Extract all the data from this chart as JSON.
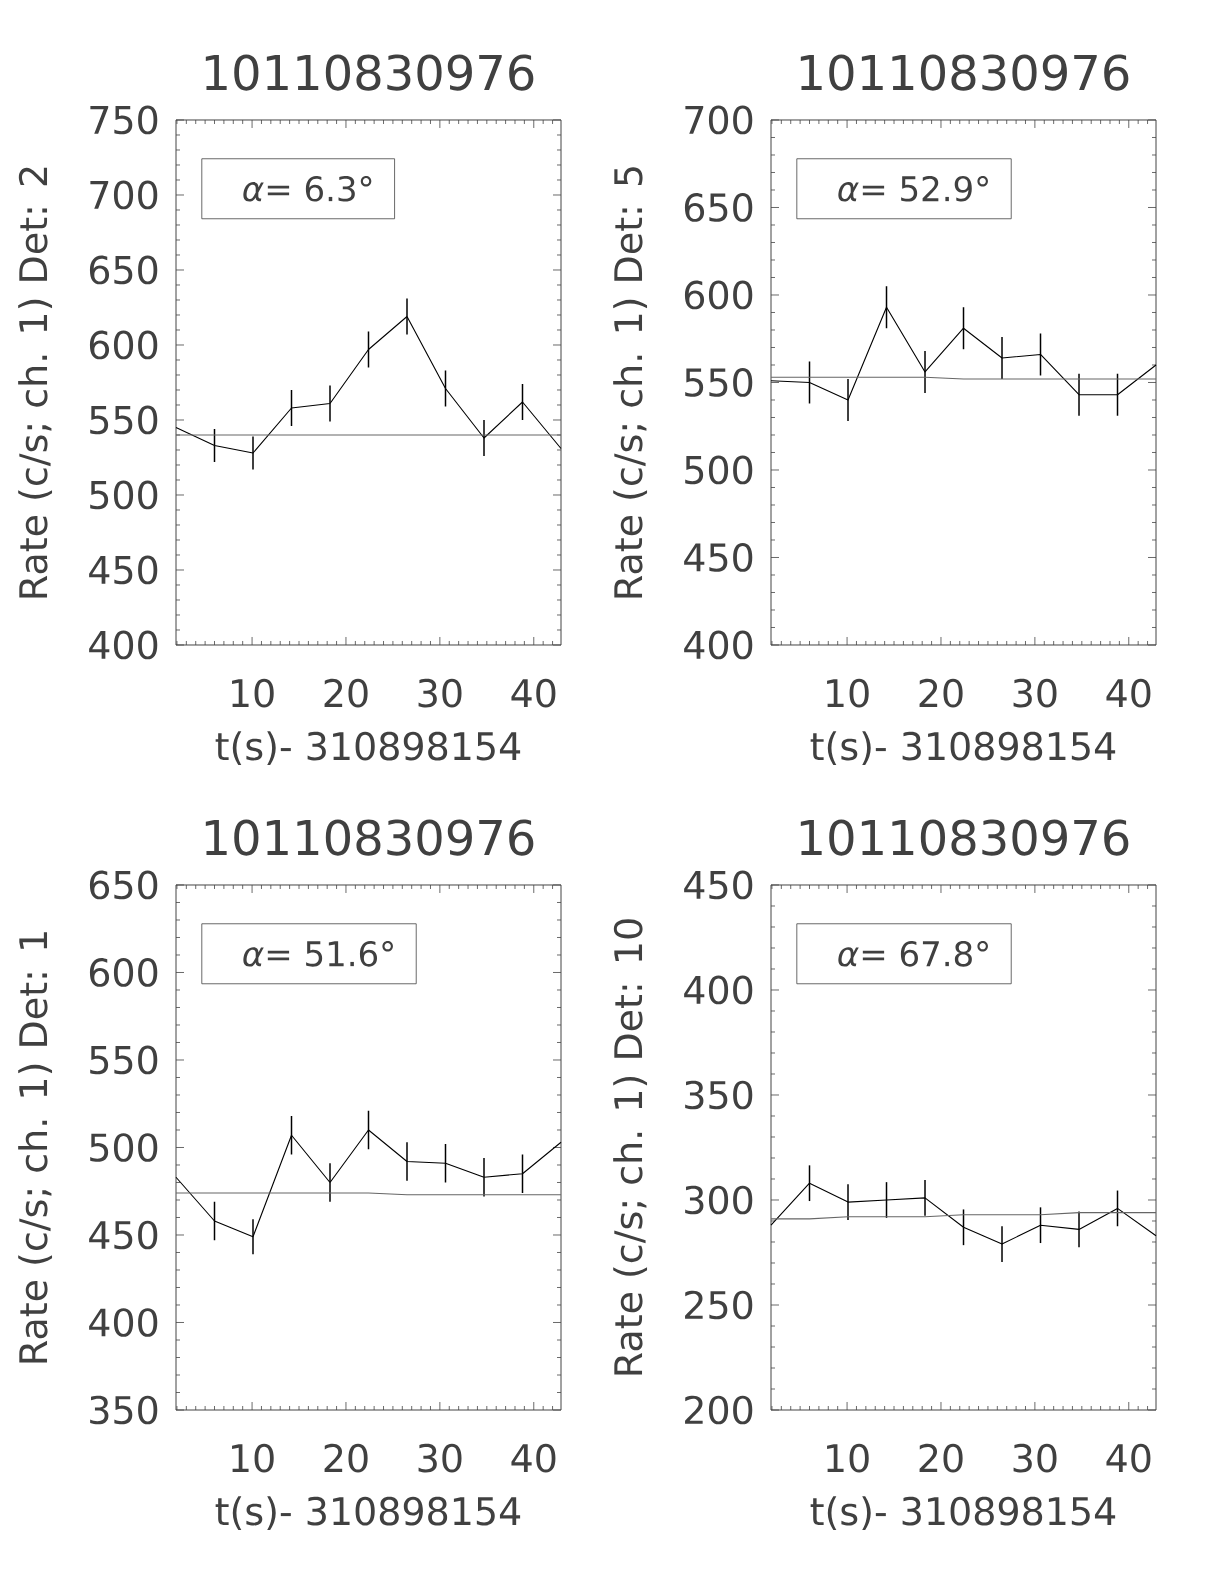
{
  "chart_data": [
    {
      "type": "line",
      "title": "10110830976",
      "xlabel": "t(s)- 310898154",
      "ylabel": "Rate (c/s; ch. 1) Det: 2",
      "annotations": [
        "*α*= 6.3°"
      ],
      "x": [
        1.9,
        6,
        10.1,
        14.2,
        18.3,
        22.4,
        26.5,
        30.6,
        34.7,
        38.8,
        42.9
      ],
      "series": [
        {
          "color": "#000000",
          "values": [
            545,
            533,
            528,
            558,
            561,
            597,
            619,
            571,
            538,
            562,
            531
          ],
          "errors": [
            null,
            11,
            11,
            12,
            12,
            12,
            12,
            12,
            12,
            12,
            null
          ]
        },
        {
          "type": "line",
          "color": "#666666",
          "values": [
            540,
            540,
            540,
            540,
            540,
            540,
            540,
            540,
            540,
            540,
            540
          ]
        }
      ],
      "xlim": [
        1.9,
        42.9
      ],
      "ylim": [
        400,
        750
      ],
      "xticks": [
        {
          "value": 2,
          "label": null
        },
        {
          "value": 3,
          "label": null
        },
        {
          "value": 4,
          "label": null
        },
        {
          "value": 5,
          "label": null
        },
        {
          "value": 6,
          "label": null
        },
        {
          "value": 7,
          "label": null
        },
        {
          "value": 8,
          "label": null
        },
        {
          "value": 9,
          "label": null
        },
        10,
        {
          "value": 11,
          "label": null
        },
        {
          "value": 12,
          "label": null
        },
        {
          "value": 13,
          "label": null
        },
        {
          "value": 14,
          "label": null
        },
        {
          "value": 15,
          "label": null
        },
        {
          "value": 16,
          "label": null
        },
        {
          "value": 17,
          "label": null
        },
        {
          "value": 18,
          "label": null
        },
        {
          "value": 19,
          "label": null
        },
        20,
        {
          "value": 21,
          "label": null
        },
        {
          "value": 22,
          "label": null
        },
        {
          "value": 23,
          "label": null
        },
        {
          "value": 24,
          "label": null
        },
        {
          "value": 25,
          "label": null
        },
        {
          "value": 26,
          "label": null
        },
        {
          "value": 27,
          "label": null
        },
        {
          "value": 28,
          "label": null
        },
        {
          "value": 29,
          "label": null
        },
        30,
        {
          "value": 31,
          "label": null
        },
        {
          "value": 32,
          "label": null
        },
        {
          "value": 33,
          "label": null
        },
        {
          "value": 34,
          "label": null
        },
        {
          "value": 35,
          "label": null
        },
        {
          "value": 36,
          "label": null
        },
        {
          "value": 37,
          "label": null
        },
        {
          "value": 38,
          "label": null
        },
        {
          "value": 39,
          "label": null
        },
        40,
        {
          "value": 41,
          "label": null
        },
        {
          "value": 42,
          "label": null
        }
      ],
      "yticks": [
        400,
        {
          "value": 410,
          "label": null
        },
        {
          "value": 420,
          "label": null
        },
        {
          "value": 430,
          "label": null
        },
        {
          "value": 440,
          "label": null
        },
        450,
        {
          "value": 460,
          "label": null
        },
        {
          "value": 470,
          "label": null
        },
        {
          "value": 480,
          "label": null
        },
        {
          "value": 490,
          "label": null
        },
        500,
        {
          "value": 510,
          "label": null
        },
        {
          "value": 520,
          "label": null
        },
        {
          "value": 530,
          "label": null
        },
        {
          "value": 540,
          "label": null
        },
        550,
        {
          "value": 560,
          "label": null
        },
        {
          "value": 570,
          "label": null
        },
        {
          "value": 580,
          "label": null
        },
        {
          "value": 590,
          "label": null
        },
        600,
        {
          "value": 610,
          "label": null
        },
        {
          "value": 620,
          "label": null
        },
        {
          "value": 630,
          "label": null
        },
        {
          "value": 640,
          "label": null
        },
        650,
        {
          "value": 660,
          "label": null
        },
        {
          "value": 670,
          "label": null
        },
        {
          "value": 680,
          "label": null
        },
        {
          "value": 690,
          "label": null
        },
        700,
        {
          "value": 710,
          "label": null
        },
        {
          "value": 720,
          "label": null
        },
        {
          "value": 730,
          "label": null
        },
        {
          "value": 740,
          "label": null
        },
        750
      ]
    },
    {
      "type": "line",
      "title": "10110830976",
      "xlabel": "t(s)- 310898154",
      "ylabel": "Rate (c/s; ch. 1) Det: 5",
      "annotations": [
        "*α*= 52.9°"
      ],
      "x": [
        1.9,
        6,
        10.1,
        14.2,
        18.3,
        22.4,
        26.5,
        30.6,
        34.7,
        38.8,
        42.9
      ],
      "series": [
        {
          "color": "#000000",
          "values": [
            551,
            550,
            540,
            593,
            556,
            581,
            564,
            566,
            543,
            543,
            560
          ],
          "errors": [
            null,
            12,
            12,
            12,
            12,
            12,
            12,
            12,
            12,
            12,
            null
          ]
        },
        {
          "type": "line",
          "color": "#666666",
          "values": [
            553,
            553,
            553,
            553,
            553,
            552,
            552,
            552,
            552,
            552,
            552
          ]
        }
      ],
      "xlim": [
        1.9,
        42.9
      ],
      "ylim": [
        400,
        700
      ],
      "xticks": [
        {
          "value": 2,
          "label": null
        },
        {
          "value": 3,
          "label": null
        },
        {
          "value": 4,
          "label": null
        },
        {
          "value": 5,
          "label": null
        },
        {
          "value": 6,
          "label": null
        },
        {
          "value": 7,
          "label": null
        },
        {
          "value": 8,
          "label": null
        },
        {
          "value": 9,
          "label": null
        },
        10,
        {
          "value": 11,
          "label": null
        },
        {
          "value": 12,
          "label": null
        },
        {
          "value": 13,
          "label": null
        },
        {
          "value": 14,
          "label": null
        },
        {
          "value": 15,
          "label": null
        },
        {
          "value": 16,
          "label": null
        },
        {
          "value": 17,
          "label": null
        },
        {
          "value": 18,
          "label": null
        },
        {
          "value": 19,
          "label": null
        },
        20,
        {
          "value": 21,
          "label": null
        },
        {
          "value": 22,
          "label": null
        },
        {
          "value": 23,
          "label": null
        },
        {
          "value": 24,
          "label": null
        },
        {
          "value": 25,
          "label": null
        },
        {
          "value": 26,
          "label": null
        },
        {
          "value": 27,
          "label": null
        },
        {
          "value": 28,
          "label": null
        },
        {
          "value": 29,
          "label": null
        },
        30,
        {
          "value": 31,
          "label": null
        },
        {
          "value": 32,
          "label": null
        },
        {
          "value": 33,
          "label": null
        },
        {
          "value": 34,
          "label": null
        },
        {
          "value": 35,
          "label": null
        },
        {
          "value": 36,
          "label": null
        },
        {
          "value": 37,
          "label": null
        },
        {
          "value": 38,
          "label": null
        },
        {
          "value": 39,
          "label": null
        },
        40,
        {
          "value": 41,
          "label": null
        },
        {
          "value": 42,
          "label": null
        }
      ],
      "yticks": [
        400,
        {
          "value": 410,
          "label": null
        },
        {
          "value": 420,
          "label": null
        },
        {
          "value": 430,
          "label": null
        },
        {
          "value": 440,
          "label": null
        },
        450,
        {
          "value": 460,
          "label": null
        },
        {
          "value": 470,
          "label": null
        },
        {
          "value": 480,
          "label": null
        },
        {
          "value": 490,
          "label": null
        },
        500,
        {
          "value": 510,
          "label": null
        },
        {
          "value": 520,
          "label": null
        },
        {
          "value": 530,
          "label": null
        },
        {
          "value": 540,
          "label": null
        },
        550,
        {
          "value": 560,
          "label": null
        },
        {
          "value": 570,
          "label": null
        },
        {
          "value": 580,
          "label": null
        },
        {
          "value": 590,
          "label": null
        },
        600,
        {
          "value": 610,
          "label": null
        },
        {
          "value": 620,
          "label": null
        },
        {
          "value": 630,
          "label": null
        },
        {
          "value": 640,
          "label": null
        },
        650,
        {
          "value": 660,
          "label": null
        },
        {
          "value": 670,
          "label": null
        },
        {
          "value": 680,
          "label": null
        },
        {
          "value": 690,
          "label": null
        },
        700
      ]
    },
    {
      "type": "line",
      "title": "10110830976",
      "xlabel": "t(s)- 310898154",
      "ylabel": "Rate (c/s; ch. 1) Det: 1",
      "annotations": [
        "*α*= 51.6°"
      ],
      "x": [
        1.9,
        6,
        10.1,
        14.2,
        18.3,
        22.4,
        26.5,
        30.6,
        34.7,
        38.8,
        42.9
      ],
      "series": [
        {
          "color": "#000000",
          "values": [
            483,
            458,
            449,
            507,
            480,
            510,
            492,
            491,
            483,
            485,
            503
          ],
          "errors": [
            null,
            11,
            10,
            11,
            11,
            11,
            11,
            11,
            11,
            11,
            null
          ]
        },
        {
          "type": "line",
          "color": "#666666",
          "values": [
            474,
            474,
            474,
            474,
            474,
            474,
            473,
            473,
            473,
            473,
            473
          ]
        }
      ],
      "xlim": [
        1.9,
        42.9
      ],
      "ylim": [
        350,
        650
      ],
      "xticks": [
        {
          "value": 2,
          "label": null
        },
        {
          "value": 3,
          "label": null
        },
        {
          "value": 4,
          "label": null
        },
        {
          "value": 5,
          "label": null
        },
        {
          "value": 6,
          "label": null
        },
        {
          "value": 7,
          "label": null
        },
        {
          "value": 8,
          "label": null
        },
        {
          "value": 9,
          "label": null
        },
        10,
        {
          "value": 11,
          "label": null
        },
        {
          "value": 12,
          "label": null
        },
        {
          "value": 13,
          "label": null
        },
        {
          "value": 14,
          "label": null
        },
        {
          "value": 15,
          "label": null
        },
        {
          "value": 16,
          "label": null
        },
        {
          "value": 17,
          "label": null
        },
        {
          "value": 18,
          "label": null
        },
        {
          "value": 19,
          "label": null
        },
        20,
        {
          "value": 21,
          "label": null
        },
        {
          "value": 22,
          "label": null
        },
        {
          "value": 23,
          "label": null
        },
        {
          "value": 24,
          "label": null
        },
        {
          "value": 25,
          "label": null
        },
        {
          "value": 26,
          "label": null
        },
        {
          "value": 27,
          "label": null
        },
        {
          "value": 28,
          "label": null
        },
        {
          "value": 29,
          "label": null
        },
        30,
        {
          "value": 31,
          "label": null
        },
        {
          "value": 32,
          "label": null
        },
        {
          "value": 33,
          "label": null
        },
        {
          "value": 34,
          "label": null
        },
        {
          "value": 35,
          "label": null
        },
        {
          "value": 36,
          "label": null
        },
        {
          "value": 37,
          "label": null
        },
        {
          "value": 38,
          "label": null
        },
        {
          "value": 39,
          "label": null
        },
        40,
        {
          "value": 41,
          "label": null
        },
        {
          "value": 42,
          "label": null
        }
      ],
      "yticks": [
        350,
        {
          "value": 360,
          "label": null
        },
        {
          "value": 370,
          "label": null
        },
        {
          "value": 380,
          "label": null
        },
        {
          "value": 390,
          "label": null
        },
        400,
        {
          "value": 410,
          "label": null
        },
        {
          "value": 420,
          "label": null
        },
        {
          "value": 430,
          "label": null
        },
        {
          "value": 440,
          "label": null
        },
        450,
        {
          "value": 460,
          "label": null
        },
        {
          "value": 470,
          "label": null
        },
        {
          "value": 480,
          "label": null
        },
        {
          "value": 490,
          "label": null
        },
        500,
        {
          "value": 510,
          "label": null
        },
        {
          "value": 520,
          "label": null
        },
        {
          "value": 530,
          "label": null
        },
        {
          "value": 540,
          "label": null
        },
        550,
        {
          "value": 560,
          "label": null
        },
        {
          "value": 570,
          "label": null
        },
        {
          "value": 580,
          "label": null
        },
        {
          "value": 590,
          "label": null
        },
        600,
        {
          "value": 610,
          "label": null
        },
        {
          "value": 620,
          "label": null
        },
        {
          "value": 630,
          "label": null
        },
        {
          "value": 640,
          "label": null
        },
        650
      ]
    },
    {
      "type": "line",
      "title": "10110830976",
      "xlabel": "t(s)- 310898154",
      "ylabel": "Rate (c/s; ch. 1) Det: 10",
      "annotations": [
        "*α*= 67.8°"
      ],
      "x": [
        1.9,
        6,
        10.1,
        14.2,
        18.3,
        22.4,
        26.5,
        30.6,
        34.7,
        38.8,
        42.9
      ],
      "series": [
        {
          "color": "#000000",
          "values": [
            288,
            308,
            299,
            300,
            301,
            287,
            279,
            288,
            286,
            296,
            283
          ],
          "errors": [
            null,
            8.5,
            8.5,
            8.5,
            8.5,
            8.5,
            8.5,
            8.5,
            8.5,
            8.5,
            null
          ]
        },
        {
          "type": "line",
          "color": "#666666",
          "values": [
            291,
            291,
            292,
            292,
            292,
            293,
            293,
            293,
            294,
            294,
            294
          ]
        }
      ],
      "xlim": [
        1.9,
        42.9
      ],
      "ylim": [
        200,
        450
      ],
      "xticks": [
        {
          "value": 2,
          "label": null
        },
        {
          "value": 3,
          "label": null
        },
        {
          "value": 4,
          "label": null
        },
        {
          "value": 5,
          "label": null
        },
        {
          "value": 6,
          "label": null
        },
        {
          "value": 7,
          "label": null
        },
        {
          "value": 8,
          "label": null
        },
        {
          "value": 9,
          "label": null
        },
        10,
        {
          "value": 11,
          "label": null
        },
        {
          "value": 12,
          "label": null
        },
        {
          "value": 13,
          "label": null
        },
        {
          "value": 14,
          "label": null
        },
        {
          "value": 15,
          "label": null
        },
        {
          "value": 16,
          "label": null
        },
        {
          "value": 17,
          "label": null
        },
        {
          "value": 18,
          "label": null
        },
        {
          "value": 19,
          "label": null
        },
        20,
        {
          "value": 21,
          "label": null
        },
        {
          "value": 22,
          "label": null
        },
        {
          "value": 23,
          "label": null
        },
        {
          "value": 24,
          "label": null
        },
        {
          "value": 25,
          "label": null
        },
        {
          "value": 26,
          "label": null
        },
        {
          "value": 27,
          "label": null
        },
        {
          "value": 28,
          "label": null
        },
        {
          "value": 29,
          "label": null
        },
        30,
        {
          "value": 31,
          "label": null
        },
        {
          "value": 32,
          "label": null
        },
        {
          "value": 33,
          "label": null
        },
        {
          "value": 34,
          "label": null
        },
        {
          "value": 35,
          "label": null
        },
        {
          "value": 36,
          "label": null
        },
        {
          "value": 37,
          "label": null
        },
        {
          "value": 38,
          "label": null
        },
        {
          "value": 39,
          "label": null
        },
        40,
        {
          "value": 41,
          "label": null
        },
        {
          "value": 42,
          "label": null
        }
      ],
      "yticks": [
        200,
        {
          "value": 210,
          "label": null
        },
        {
          "value": 220,
          "label": null
        },
        {
          "value": 230,
          "label": null
        },
        {
          "value": 240,
          "label": null
        },
        250,
        {
          "value": 260,
          "label": null
        },
        {
          "value": 270,
          "label": null
        },
        {
          "value": 280,
          "label": null
        },
        {
          "value": 290,
          "label": null
        },
        300,
        {
          "value": 310,
          "label": null
        },
        {
          "value": 320,
          "label": null
        },
        {
          "value": 330,
          "label": null
        },
        {
          "value": 340,
          "label": null
        },
        350,
        {
          "value": 360,
          "label": null
        },
        {
          "value": 370,
          "label": null
        },
        {
          "value": 380,
          "label": null
        },
        {
          "value": 390,
          "label": null
        },
        400,
        {
          "value": 410,
          "label": null
        },
        {
          "value": 420,
          "label": null
        },
        {
          "value": 430,
          "label": null
        },
        {
          "value": 440,
          "label": null
        },
        450
      ]
    }
  ]
}
